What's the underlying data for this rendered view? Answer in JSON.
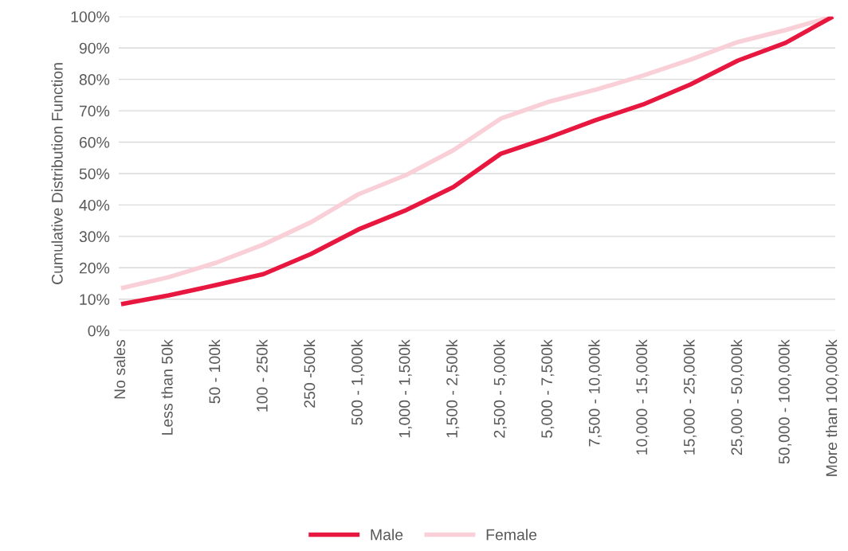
{
  "chart_data": {
    "type": "line",
    "ylabel": "Cumulative Distribution Function",
    "categories": [
      "No sales",
      "Less than 50k",
      "50 - 100k",
      "100 - 250k",
      "250 -500k",
      "500 - 1,000k",
      "1,000 - 1,500k",
      "1,500 - 2,500k",
      "2,500 - 5,000k",
      "5,000 - 7,500k",
      "7,500 - 10,000k",
      "10,000 - 15,000k",
      "15,000 - 25,000k",
      "25,000 - 50,000k",
      "50,000 - 100,000k",
      "More than 100,000k"
    ],
    "series": [
      {
        "name": "Male",
        "color": "#e8173f",
        "values": [
          8.4,
          11.2,
          14.5,
          18,
          24.4,
          32.2,
          38.3,
          45.7,
          56.3,
          61.4,
          67,
          72,
          78.4,
          86,
          91.6,
          100
        ]
      },
      {
        "name": "Female",
        "color": "#fad0d8",
        "values": [
          13.5,
          17,
          21.6,
          27.4,
          34.5,
          43.4,
          49.5,
          57.4,
          67.5,
          72.8,
          76.7,
          81.2,
          86.3,
          91.9,
          95.7,
          100
        ]
      }
    ],
    "ylim": [
      0,
      100
    ],
    "yticks": [
      {
        "value": 0,
        "label": "0%"
      },
      {
        "value": 10,
        "label": "10%"
      },
      {
        "value": 20,
        "label": "20%"
      },
      {
        "value": 30,
        "label": "30%"
      },
      {
        "value": 40,
        "label": "40%"
      },
      {
        "value": 50,
        "label": "50%"
      },
      {
        "value": 60,
        "label": "60%"
      },
      {
        "value": 70,
        "label": "70%"
      },
      {
        "value": 80,
        "label": "80%"
      },
      {
        "value": 90,
        "label": "90%"
      },
      {
        "value": 100,
        "label": "100%"
      }
    ],
    "grid": "y",
    "legend": "bottom",
    "marker": "none",
    "line_style": "solid"
  }
}
